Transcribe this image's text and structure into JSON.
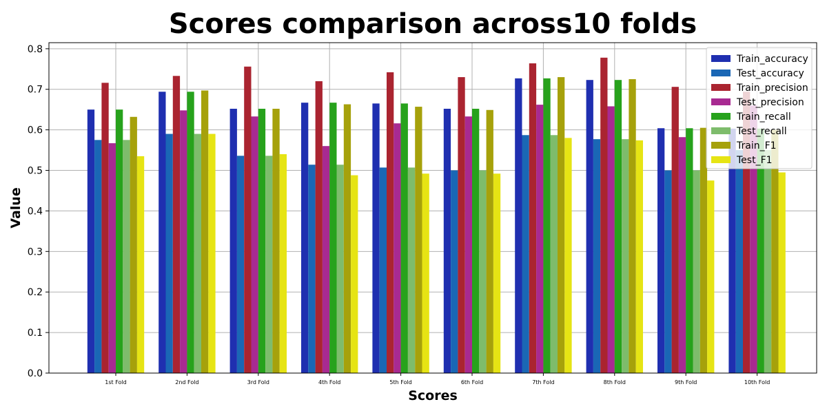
{
  "chart_data": {
    "type": "bar",
    "title": "Scores comparison across10 folds",
    "xlabel": "Scores",
    "ylabel": "Value",
    "ylim": [
      0,
      0.815
    ],
    "yticks": [
      "0.0",
      "0.1",
      "0.2",
      "0.3",
      "0.4",
      "0.5",
      "0.6",
      "0.7",
      "0.8"
    ],
    "grid": true,
    "legend_position": "top-right",
    "categories": [
      "1st Fold",
      "2nd Fold",
      "3rd Fold",
      "4th Fold",
      "5th Fold",
      "6th Fold",
      "7th Fold",
      "8th Fold",
      "9th Fold",
      "10th Fold"
    ],
    "series": [
      {
        "name": "Train_accuracy",
        "color": "#1f2fb0",
        "values": [
          0.65,
          0.694,
          0.652,
          0.667,
          0.665,
          0.652,
          0.727,
          0.723,
          0.604,
          0.603
        ]
      },
      {
        "name": "Test_accuracy",
        "color": "#1a67b5",
        "values": [
          0.575,
          0.59,
          0.536,
          0.514,
          0.507,
          0.5,
          0.587,
          0.577,
          0.5,
          0.55
        ]
      },
      {
        "name": "Train_precision",
        "color": "#aa2430",
        "values": [
          0.716,
          0.733,
          0.756,
          0.72,
          0.742,
          0.73,
          0.764,
          0.778,
          0.706,
          0.694
        ]
      },
      {
        "name": "Test_precision",
        "color": "#a82a91",
        "values": [
          0.567,
          0.648,
          0.633,
          0.56,
          0.616,
          0.633,
          0.662,
          0.658,
          0.582,
          0.66
        ]
      },
      {
        "name": "Train_recall",
        "color": "#27a21c",
        "values": [
          0.65,
          0.694,
          0.652,
          0.667,
          0.665,
          0.652,
          0.727,
          0.723,
          0.604,
          0.603
        ]
      },
      {
        "name": "Test_recall",
        "color": "#7ebc6c",
        "values": [
          0.575,
          0.59,
          0.536,
          0.514,
          0.507,
          0.5,
          0.587,
          0.577,
          0.5,
          0.55
        ]
      },
      {
        "name": "Train_F1",
        "color": "#a6a10b",
        "values": [
          0.632,
          0.697,
          0.652,
          0.663,
          0.657,
          0.649,
          0.73,
          0.725,
          0.605,
          0.6
        ]
      },
      {
        "name": "Test_F1",
        "color": "#e6e414",
        "values": [
          0.535,
          0.59,
          0.54,
          0.488,
          0.492,
          0.492,
          0.58,
          0.574,
          0.475,
          0.495
        ]
      }
    ]
  }
}
